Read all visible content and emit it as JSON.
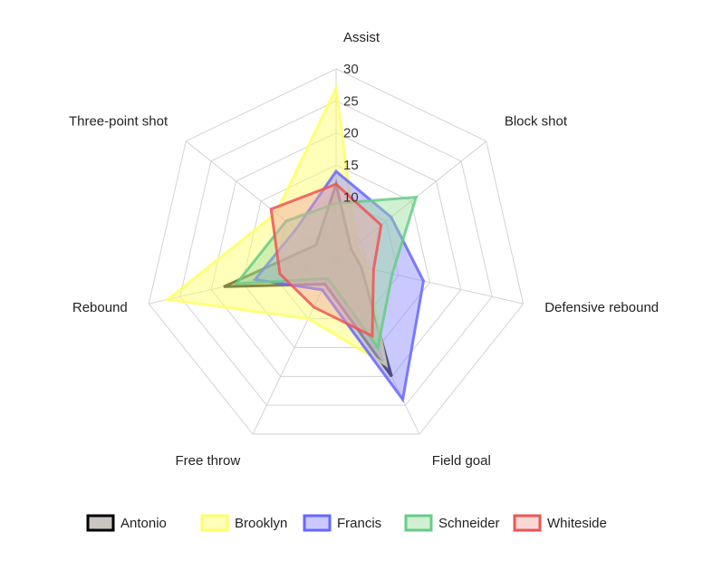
{
  "chart_data": {
    "type": "radar",
    "axes": [
      "Assist",
      "Block shot",
      "Defensive rebound",
      "Field goal",
      "Free throw",
      "Rebound",
      "Three-point shot"
    ],
    "range": [
      0,
      30
    ],
    "ticks": [
      "10",
      "15",
      "20",
      "25",
      "30"
    ],
    "grid": true,
    "legend_position": "bottom",
    "series": [
      {
        "name": "Antonio",
        "values": [
          12,
          3,
          4,
          20,
          4,
          18,
          4
        ],
        "color": "#000000",
        "fill": "#8a7e74"
      },
      {
        "name": "Brooklyn",
        "values": [
          27,
          4,
          5,
          18,
          10,
          27,
          12
        ],
        "color": "#ffff66",
        "fill": "#ffff66"
      },
      {
        "name": "Francis",
        "values": [
          14,
          11,
          14,
          24,
          5,
          13,
          8
        ],
        "color": "#6666ff",
        "fill": "#8888ff"
      },
      {
        "name": "Schneider",
        "values": [
          9,
          16,
          9,
          15,
          3,
          16,
          10
        ],
        "color": "#66cc88",
        "fill": "#99dd99"
      },
      {
        "name": "Whiteside",
        "values": [
          12,
          9,
          6,
          13,
          8,
          9,
          13
        ],
        "color": "#ee5555",
        "fill": "#f2a7a0"
      }
    ]
  }
}
